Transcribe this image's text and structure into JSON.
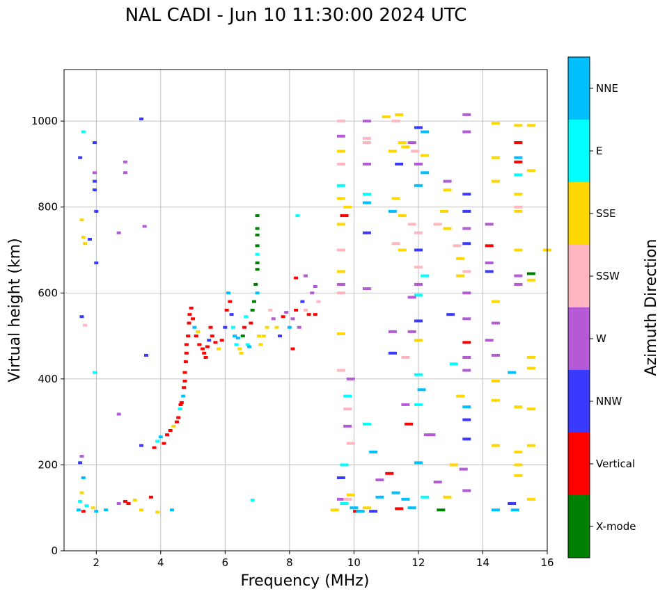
{
  "chart_data": {
    "type": "scatter",
    "title": "NAL CADI - Jun 10 11:30:00 2024 UTC",
    "xlabel": "Frequency (MHz)",
    "ylabel": "Virtual height (km)",
    "xlim": [
      1,
      16
    ],
    "ylim": [
      0,
      1120
    ],
    "xticks": [
      2,
      4,
      6,
      8,
      10,
      12,
      14,
      16
    ],
    "yticks": [
      0,
      200,
      400,
      600,
      800,
      1000
    ],
    "grid": true,
    "colorbar": {
      "label": "Azimuth Direction",
      "categories": [
        {
          "name": "X-mode",
          "color": "#008000"
        },
        {
          "name": "Vertical",
          "color": "#ff0000"
        },
        {
          "name": "NNW",
          "color": "#3a3aff"
        },
        {
          "name": "W",
          "color": "#b45ad7"
        },
        {
          "name": "SSW",
          "color": "#ffb6c1"
        },
        {
          "name": "SSE",
          "color": "#ffd700"
        },
        {
          "name": "E",
          "color": "#00ffff"
        },
        {
          "name": "NNE",
          "color": "#00bfff"
        }
      ]
    },
    "points": [
      [
        1.45,
        95,
        "NNE"
      ],
      [
        1.5,
        115,
        "E"
      ],
      [
        1.55,
        135,
        "SSE"
      ],
      [
        1.6,
        170,
        "NNE"
      ],
      [
        1.5,
        205,
        "NNW"
      ],
      [
        1.55,
        220,
        "W"
      ],
      [
        1.6,
        92,
        "Vertical"
      ],
      [
        1.7,
        105,
        "E"
      ],
      [
        1.9,
        100,
        "SSE"
      ],
      [
        2.3,
        95,
        "NNE"
      ],
      [
        2.7,
        110,
        "W"
      ],
      [
        2.9,
        115,
        "Vertical"
      ],
      [
        3.0,
        110,
        "Vertical"
      ],
      [
        3.2,
        118,
        "SSE"
      ],
      [
        3.7,
        125,
        "Vertical"
      ],
      [
        3.4,
        95,
        "SSE"
      ],
      [
        3.9,
        90,
        "SSE"
      ],
      [
        4.35,
        95,
        "NNE"
      ],
      [
        1.55,
        770,
        "SSE"
      ],
      [
        1.6,
        730,
        "SSE"
      ],
      [
        1.65,
        715,
        "SSE"
      ],
      [
        1.8,
        725,
        "NNW"
      ],
      [
        2.0,
        790,
        "NNW"
      ],
      [
        2.0,
        670,
        "NNW"
      ],
      [
        1.95,
        860,
        "NNW"
      ],
      [
        1.95,
        840,
        "NNW"
      ],
      [
        1.95,
        950,
        "NNW"
      ],
      [
        1.95,
        880,
        "W"
      ],
      [
        1.6,
        975,
        "E"
      ],
      [
        1.5,
        915,
        "NNW"
      ],
      [
        2.9,
        905,
        "W"
      ],
      [
        2.9,
        880,
        "W"
      ],
      [
        3.4,
        1005,
        "NNW"
      ],
      [
        3.5,
        755,
        "W"
      ],
      [
        2.7,
        740,
        "W"
      ],
      [
        1.95,
        415,
        "E"
      ],
      [
        1.55,
        545,
        "NNW"
      ],
      [
        1.65,
        525,
        "SSW"
      ],
      [
        3.55,
        455,
        "NNW"
      ],
      [
        2.7,
        318,
        "W"
      ],
      [
        3.4,
        245,
        "NNW"
      ],
      [
        3.8,
        240,
        "Vertical"
      ],
      [
        3.9,
        255,
        "E"
      ],
      [
        4.0,
        265,
        "NNE"
      ],
      [
        4.1,
        250,
        "Vertical"
      ],
      [
        4.2,
        270,
        "Vertical"
      ],
      [
        4.3,
        280,
        "Vertical"
      ],
      [
        4.4,
        290,
        "SSE"
      ],
      [
        4.5,
        300,
        "Vertical"
      ],
      [
        4.55,
        310,
        "Vertical"
      ],
      [
        4.6,
        330,
        "E"
      ],
      [
        4.62,
        340,
        "Vertical"
      ],
      [
        4.65,
        345,
        "Vertical"
      ],
      [
        4.7,
        360,
        "NNE"
      ],
      [
        4.72,
        380,
        "Vertical"
      ],
      [
        4.75,
        395,
        "Vertical"
      ],
      [
        4.75,
        415,
        "Vertical"
      ],
      [
        4.78,
        440,
        "Vertical"
      ],
      [
        4.8,
        460,
        "Vertical"
      ],
      [
        4.8,
        480,
        "Vertical"
      ],
      [
        4.85,
        500,
        "Vertical"
      ],
      [
        4.88,
        530,
        "Vertical"
      ],
      [
        4.9,
        550,
        "Vertical"
      ],
      [
        4.95,
        565,
        "Vertical"
      ],
      [
        5.0,
        540,
        "Vertical"
      ],
      [
        5.05,
        520,
        "NNE"
      ],
      [
        5.1,
        500,
        "Vertical"
      ],
      [
        5.15,
        510,
        "SSE"
      ],
      [
        5.2,
        480,
        "Vertical"
      ],
      [
        5.3,
        470,
        "Vertical"
      ],
      [
        5.35,
        460,
        "Vertical"
      ],
      [
        5.4,
        450,
        "Vertical"
      ],
      [
        5.45,
        475,
        "Vertical"
      ],
      [
        5.5,
        490,
        "NNW"
      ],
      [
        5.55,
        520,
        "Vertical"
      ],
      [
        5.6,
        500,
        "Vertical"
      ],
      [
        5.7,
        485,
        "Vertical"
      ],
      [
        5.8,
        470,
        "SSE"
      ],
      [
        5.9,
        490,
        "Vertical"
      ],
      [
        6.0,
        520,
        "NNW"
      ],
      [
        6.05,
        560,
        "Vertical"
      ],
      [
        6.1,
        600,
        "NNE"
      ],
      [
        6.15,
        580,
        "Vertical"
      ],
      [
        6.2,
        550,
        "NNW"
      ],
      [
        6.25,
        520,
        "E"
      ],
      [
        6.3,
        500,
        "NNE"
      ],
      [
        6.35,
        480,
        "E"
      ],
      [
        6.4,
        495,
        "NNE"
      ],
      [
        6.45,
        470,
        "SSE"
      ],
      [
        6.5,
        460,
        "SSE"
      ],
      [
        6.55,
        500,
        "X-mode"
      ],
      [
        6.6,
        520,
        "Vertical"
      ],
      [
        6.65,
        545,
        "E"
      ],
      [
        6.7,
        480,
        "E"
      ],
      [
        6.75,
        475,
        "NNE"
      ],
      [
        6.8,
        530,
        "Vertical"
      ],
      [
        6.85,
        560,
        "X-mode"
      ],
      [
        6.9,
        580,
        "X-mode"
      ],
      [
        6.95,
        620,
        "X-mode"
      ],
      [
        7.0,
        600,
        "NNE"
      ],
      [
        7.05,
        500,
        "SSE"
      ],
      [
        7.1,
        480,
        "SSE"
      ],
      [
        7.2,
        500,
        "SSE"
      ],
      [
        7.3,
        520,
        "SSE"
      ],
      [
        7.4,
        560,
        "SSW"
      ],
      [
        7.5,
        540,
        "W"
      ],
      [
        7.6,
        520,
        "SSE"
      ],
      [
        7.7,
        500,
        "NNW"
      ],
      [
        7.8,
        545,
        "Vertical"
      ],
      [
        7.9,
        555,
        "W"
      ],
      [
        8.0,
        520,
        "NNE"
      ],
      [
        8.1,
        540,
        "W"
      ],
      [
        8.2,
        560,
        "Vertical"
      ],
      [
        8.3,
        520,
        "W"
      ],
      [
        8.4,
        580,
        "NNW"
      ],
      [
        8.5,
        560,
        "SSW"
      ],
      [
        8.6,
        550,
        "Vertical"
      ],
      [
        8.7,
        600,
        "W"
      ],
      [
        8.8,
        550,
        "Vertical"
      ],
      [
        8.9,
        580,
        "SSW"
      ],
      [
        8.2,
        635,
        "Vertical"
      ],
      [
        8.5,
        640,
        "W"
      ],
      [
        8.8,
        615,
        "W"
      ],
      [
        8.1,
        470,
        "Vertical"
      ],
      [
        7.0,
        780,
        "X-mode"
      ],
      [
        7.0,
        750,
        "X-mode"
      ],
      [
        7.0,
        735,
        "X-mode"
      ],
      [
        7.0,
        710,
        "X-mode"
      ],
      [
        7.0,
        690,
        "E"
      ],
      [
        7.0,
        670,
        "X-mode"
      ],
      [
        7.0,
        655,
        "X-mode"
      ],
      [
        8.25,
        780,
        "E"
      ],
      [
        6.85,
        118,
        "E"
      ],
      [
        2.0,
        92,
        "NNE"
      ],
      [
        9.4,
        95,
        "SSE"
      ],
      [
        9.6,
        120,
        "W"
      ],
      [
        9.7,
        110,
        "E"
      ],
      [
        9.8,
        120,
        "SSW"
      ],
      [
        9.9,
        130,
        "SSE"
      ],
      [
        10.0,
        100,
        "NNE"
      ],
      [
        10.1,
        92,
        "Vertical"
      ],
      [
        10.2,
        92,
        "NNE"
      ],
      [
        10.4,
        100,
        "SSE"
      ],
      [
        10.6,
        92,
        "NNW"
      ],
      [
        10.8,
        125,
        "NNE"
      ],
      [
        11.1,
        180,
        "Vertical"
      ],
      [
        11.3,
        135,
        "NNE"
      ],
      [
        11.4,
        98,
        "Vertical"
      ],
      [
        11.6,
        120,
        "NNE"
      ],
      [
        11.8,
        100,
        "NNE"
      ],
      [
        12.0,
        205,
        "NNE"
      ],
      [
        12.2,
        125,
        "E"
      ],
      [
        12.4,
        270,
        "W"
      ],
      [
        12.6,
        160,
        "W"
      ],
      [
        12.7,
        95,
        "X-mode"
      ],
      [
        12.9,
        125,
        "SSE"
      ],
      [
        13.1,
        200,
        "SSE"
      ],
      [
        13.4,
        190,
        "W"
      ],
      [
        13.5,
        140,
        "W"
      ],
      [
        14.4,
        95,
        "NNE"
      ],
      [
        14.4,
        245,
        "SSE"
      ],
      [
        14.9,
        110,
        "NNW"
      ],
      [
        15.0,
        95,
        "NNE"
      ],
      [
        15.1,
        200,
        "SSE"
      ],
      [
        15.1,
        230,
        "SSE"
      ],
      [
        15.5,
        120,
        "SSE"
      ],
      [
        15.1,
        175,
        "SSE"
      ],
      [
        15.5,
        245,
        "SSE"
      ],
      [
        15.1,
        335,
        "SSE"
      ],
      [
        15.5,
        330,
        "SSE"
      ],
      [
        15.5,
        425,
        "SSE"
      ],
      [
        15.5,
        450,
        "SSE"
      ],
      [
        14.4,
        395,
        "SSE"
      ],
      [
        14.4,
        350,
        "SSE"
      ],
      [
        12.0,
        410,
        "E"
      ],
      [
        12.1,
        375,
        "NNE"
      ],
      [
        12.0,
        340,
        "E"
      ],
      [
        12.3,
        270,
        "W"
      ],
      [
        13.3,
        360,
        "SSE"
      ],
      [
        13.5,
        335,
        "NNE"
      ],
      [
        13.5,
        305,
        "NNW"
      ],
      [
        13.5,
        260,
        "NNW"
      ],
      [
        13.1,
        435,
        "E"
      ],
      [
        13.5,
        485,
        "Vertical"
      ],
      [
        13.5,
        450,
        "W"
      ],
      [
        13.5,
        420,
        "W"
      ],
      [
        14.4,
        455,
        "W"
      ],
      [
        14.2,
        490,
        "W"
      ],
      [
        14.4,
        530,
        "W"
      ],
      [
        14.4,
        580,
        "SSE"
      ],
      [
        14.9,
        415,
        "NNE"
      ],
      [
        9.6,
        1000,
        "SSW"
      ],
      [
        9.6,
        965,
        "W"
      ],
      [
        9.6,
        930,
        "SSE"
      ],
      [
        9.6,
        900,
        "SSW"
      ],
      [
        9.6,
        850,
        "E"
      ],
      [
        9.6,
        820,
        "SSE"
      ],
      [
        9.7,
        780,
        "Vertical"
      ],
      [
        9.8,
        800,
        "SSE"
      ],
      [
        9.6,
        760,
        "SSE"
      ],
      [
        9.6,
        700,
        "SSW"
      ],
      [
        9.6,
        650,
        "SSE"
      ],
      [
        9.6,
        620,
        "W"
      ],
      [
        9.6,
        600,
        "SSW"
      ],
      [
        9.6,
        505,
        "SSE"
      ],
      [
        9.6,
        420,
        "SSW"
      ],
      [
        9.9,
        400,
        "W"
      ],
      [
        9.8,
        360,
        "E"
      ],
      [
        9.8,
        330,
        "SSW"
      ],
      [
        9.8,
        290,
        "W"
      ],
      [
        9.9,
        250,
        "SSW"
      ],
      [
        9.7,
        200,
        "E"
      ],
      [
        9.6,
        170,
        "NNW"
      ],
      [
        10.4,
        1000,
        "W"
      ],
      [
        10.4,
        950,
        "SSW"
      ],
      [
        10.4,
        900,
        "W"
      ],
      [
        10.4,
        830,
        "E"
      ],
      [
        10.4,
        810,
        "NNE"
      ],
      [
        10.4,
        740,
        "NNW"
      ],
      [
        10.4,
        610,
        "W"
      ],
      [
        10.4,
        295,
        "E"
      ],
      [
        10.6,
        230,
        "NNE"
      ],
      [
        10.8,
        165,
        "W"
      ],
      [
        11.2,
        930,
        "SSE"
      ],
      [
        11.4,
        900,
        "NNW"
      ],
      [
        11.5,
        950,
        "SSE"
      ],
      [
        11.6,
        940,
        "SSE"
      ],
      [
        11.8,
        950,
        "W"
      ],
      [
        11.9,
        930,
        "SSW"
      ],
      [
        12.0,
        985,
        "NNW"
      ],
      [
        12.2,
        975,
        "NNE"
      ],
      [
        12.2,
        920,
        "SSE"
      ],
      [
        12.0,
        900,
        "W"
      ],
      [
        12.2,
        880,
        "NNE"
      ],
      [
        12.0,
        850,
        "NNE"
      ],
      [
        11.3,
        820,
        "SSE"
      ],
      [
        11.2,
        790,
        "NNE"
      ],
      [
        11.5,
        780,
        "SSE"
      ],
      [
        11.8,
        760,
        "SSW"
      ],
      [
        12.0,
        740,
        "SSW"
      ],
      [
        11.5,
        700,
        "SSE"
      ],
      [
        11.3,
        715,
        "SSW"
      ],
      [
        12.0,
        700,
        "NNW"
      ],
      [
        12.0,
        660,
        "SSW"
      ],
      [
        12.2,
        640,
        "E"
      ],
      [
        12.0,
        620,
        "W"
      ],
      [
        12.0,
        595,
        "E"
      ],
      [
        11.8,
        590,
        "W"
      ],
      [
        12.0,
        535,
        "NNW"
      ],
      [
        11.8,
        510,
        "W"
      ],
      [
        11.2,
        510,
        "W"
      ],
      [
        12.0,
        490,
        "SSE"
      ],
      [
        11.2,
        460,
        "NNW"
      ],
      [
        11.6,
        450,
        "SSW"
      ],
      [
        11.6,
        340,
        "W"
      ],
      [
        11.7,
        295,
        "Vertical"
      ],
      [
        12.6,
        760,
        "SSW"
      ],
      [
        12.8,
        790,
        "SSE"
      ],
      [
        12.9,
        750,
        "SSE"
      ],
      [
        12.9,
        860,
        "W"
      ],
      [
        12.9,
        840,
        "SSE"
      ],
      [
        13.2,
        710,
        "SSW"
      ],
      [
        13.3,
        680,
        "SSE"
      ],
      [
        13.3,
        640,
        "SSE"
      ],
      [
        13.0,
        550,
        "NNW"
      ],
      [
        13.5,
        750,
        "W"
      ],
      [
        13.5,
        830,
        "NNW"
      ],
      [
        13.5,
        790,
        "NNW"
      ],
      [
        13.5,
        715,
        "NNW"
      ],
      [
        13.5,
        650,
        "SSW"
      ],
      [
        13.5,
        600,
        "W"
      ],
      [
        13.5,
        540,
        "W"
      ],
      [
        13.5,
        1015,
        "W"
      ],
      [
        13.5,
        975,
        "W"
      ],
      [
        14.2,
        760,
        "W"
      ],
      [
        14.2,
        710,
        "Vertical"
      ],
      [
        14.2,
        670,
        "W"
      ],
      [
        14.2,
        650,
        "NNW"
      ],
      [
        14.4,
        860,
        "SSE"
      ],
      [
        14.4,
        915,
        "SSE"
      ],
      [
        14.4,
        995,
        "SSE"
      ],
      [
        15.1,
        990,
        "SSE"
      ],
      [
        15.5,
        990,
        "SSE"
      ],
      [
        15.1,
        950,
        "Vertical"
      ],
      [
        15.1,
        915,
        "NNE"
      ],
      [
        15.1,
        905,
        "Vertical"
      ],
      [
        15.1,
        875,
        "E"
      ],
      [
        15.5,
        885,
        "SSE"
      ],
      [
        15.1,
        830,
        "SSE"
      ],
      [
        15.1,
        800,
        "SSW"
      ],
      [
        15.1,
        790,
        "SSE"
      ],
      [
        15.1,
        700,
        "SSE"
      ],
      [
        15.1,
        640,
        "W"
      ],
      [
        15.1,
        620,
        "W"
      ],
      [
        15.5,
        645,
        "X-mode"
      ],
      [
        15.5,
        630,
        "SSE"
      ],
      [
        16.0,
        700,
        "SSE"
      ],
      [
        11.4,
        1015,
        "SSE"
      ],
      [
        11.0,
        1010,
        "SSE"
      ],
      [
        11.3,
        1000,
        "SSW"
      ],
      [
        10.4,
        960,
        "SSW"
      ]
    ]
  }
}
